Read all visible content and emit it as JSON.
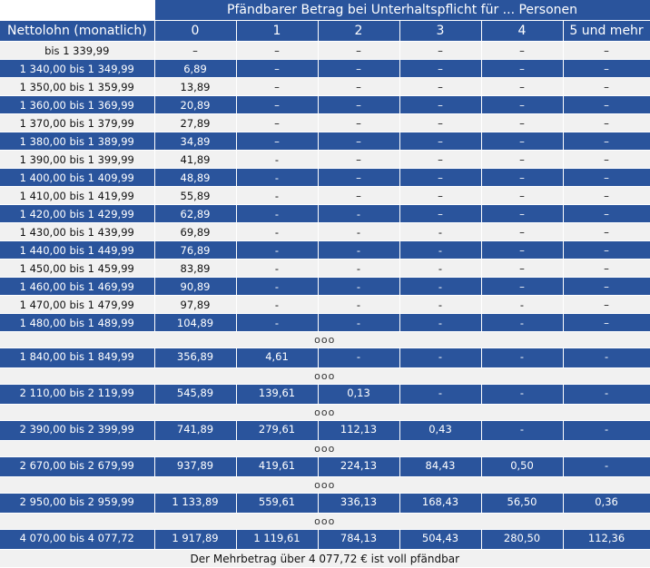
{
  "header": {
    "caption": "Pfändbarer Betrag bei Unterhaltspflicht für ... Personen",
    "first_col": "Nettolohn (monatlich)",
    "persons": [
      "0",
      "1",
      "2",
      "3",
      "4",
      "5 und mehr"
    ]
  },
  "rows": [
    {
      "type": "data",
      "shade": "light",
      "label": "bis 1 339,99",
      "values": [
        "–",
        "–",
        "–",
        "–",
        "–",
        "–"
      ]
    },
    {
      "type": "data",
      "shade": "dark",
      "label": "1 340,00 bis 1 349,99",
      "values": [
        "6,89",
        "–",
        "–",
        "–",
        "–",
        "–"
      ]
    },
    {
      "type": "data",
      "shade": "light",
      "label": "1 350,00 bis 1 359,99",
      "values": [
        "13,89",
        "–",
        "–",
        "–",
        "–",
        "–"
      ]
    },
    {
      "type": "data",
      "shade": "dark",
      "label": "1 360,00 bis 1 369,99",
      "values": [
        "20,89",
        "–",
        "–",
        "–",
        "–",
        "–"
      ]
    },
    {
      "type": "data",
      "shade": "light",
      "label": "1 370,00 bis 1 379,99",
      "values": [
        "27,89",
        "–",
        "–",
        "–",
        "–",
        "–"
      ]
    },
    {
      "type": "data",
      "shade": "dark",
      "label": "1 380,00 bis 1 389,99",
      "values": [
        "34,89",
        "–",
        "–",
        "–",
        "–",
        "–"
      ]
    },
    {
      "type": "data",
      "shade": "light",
      "label": "1 390,00 bis 1 399,99",
      "values": [
        "41,89",
        "-",
        "–",
        "–",
        "–",
        "–"
      ]
    },
    {
      "type": "data",
      "shade": "dark",
      "label": "1 400,00 bis 1 409,99",
      "values": [
        "48,89",
        "-",
        "–",
        "–",
        "–",
        "–"
      ]
    },
    {
      "type": "data",
      "shade": "light",
      "label": "1 410,00 bis 1 419,99",
      "values": [
        "55,89",
        "-",
        "–",
        "–",
        "–",
        "–"
      ]
    },
    {
      "type": "data",
      "shade": "dark",
      "label": "1 420,00 bis 1 429,99",
      "values": [
        "62,89",
        "-",
        "-",
        "–",
        "–",
        "–"
      ]
    },
    {
      "type": "data",
      "shade": "light",
      "label": "1 430,00 bis 1 439,99",
      "values": [
        "69,89",
        "-",
        "-",
        "-",
        "–",
        "–"
      ]
    },
    {
      "type": "data",
      "shade": "dark",
      "label": "1 440,00 bis 1 449,99",
      "values": [
        "76,89",
        "-",
        "-",
        "-",
        "–",
        "–"
      ]
    },
    {
      "type": "data",
      "shade": "light",
      "label": "1 450,00 bis 1 459,99",
      "values": [
        "83,89",
        "-",
        "-",
        "-",
        "–",
        "–"
      ]
    },
    {
      "type": "data",
      "shade": "dark",
      "label": "1 460,00 bis 1 469,99",
      "values": [
        "90,89",
        "-",
        "-",
        "-",
        "–",
        "–"
      ]
    },
    {
      "type": "data",
      "shade": "light",
      "label": "1 470,00 bis 1 479,99",
      "values": [
        "97,89",
        "-",
        "-",
        "-",
        "-",
        "–"
      ]
    },
    {
      "type": "data",
      "shade": "dark",
      "label": "1 480,00 bis 1 489,99",
      "values": [
        "104,89",
        "-",
        "-",
        "-",
        "-",
        "–"
      ]
    },
    {
      "type": "gap",
      "text": "ooo"
    },
    {
      "type": "data",
      "shade": "dark",
      "big": true,
      "label": "1 840,00 bis 1 849,99",
      "values": [
        "356,89",
        "4,61",
        "-",
        "-",
        "-",
        "-"
      ]
    },
    {
      "type": "gap",
      "text": "ooo"
    },
    {
      "type": "data",
      "shade": "dark",
      "big": true,
      "label": "2 110,00 bis 2 119,99",
      "values": [
        "545,89",
        "139,61",
        "0,13",
        "-",
        "-",
        "-"
      ]
    },
    {
      "type": "gap",
      "text": "ooo"
    },
    {
      "type": "data",
      "shade": "dark",
      "big": true,
      "label": "2 390,00 bis 2 399,99",
      "values": [
        "741,89",
        "279,61",
        "112,13",
        "0,43",
        "-",
        "-"
      ]
    },
    {
      "type": "gap",
      "text": "ooo"
    },
    {
      "type": "data",
      "shade": "dark",
      "big": true,
      "label": "2 670,00 bis 2 679,99",
      "values": [
        "937,89",
        "419,61",
        "224,13",
        "84,43",
        "0,50",
        "-"
      ]
    },
    {
      "type": "gap",
      "text": "ooo"
    },
    {
      "type": "data",
      "shade": "dark",
      "big": true,
      "label": "2 950,00 bis 2 959,99",
      "values": [
        "1 133,89",
        "559,61",
        "336,13",
        "168,43",
        "56,50",
        "0,36"
      ]
    },
    {
      "type": "gap",
      "text": "ooo"
    },
    {
      "type": "data",
      "shade": "dark",
      "big": true,
      "label": "4 070,00 bis 4 077,72",
      "values": [
        "1 917,89",
        "1 119,61",
        "784,13",
        "504,43",
        "280,50",
        "112,36"
      ]
    }
  ],
  "footer": "Der Mehrbetrag über 4 077,72 € ist voll pfändbar",
  "colors": {
    "header_bg": "#2a549c",
    "light_row": "#f1f1f1",
    "text_on_dark": "#ffffff"
  }
}
